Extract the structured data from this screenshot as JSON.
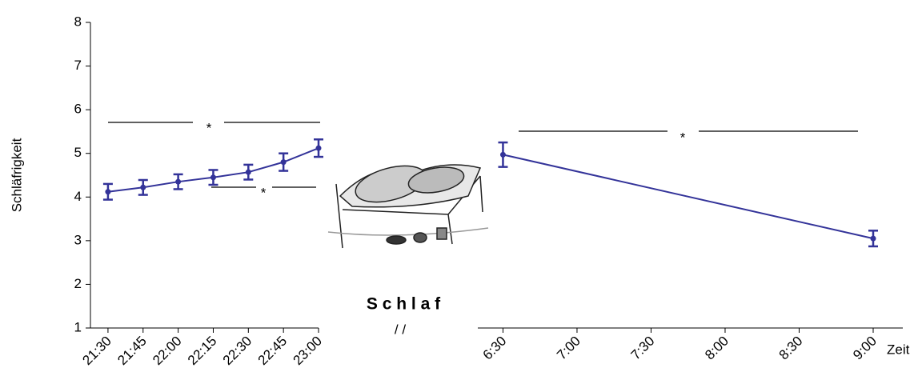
{
  "chart_data": {
    "type": "line",
    "y_label": "Schläfrigkeit",
    "x_label": "Zeit",
    "color": "#333399",
    "ylim": [
      1,
      8
    ],
    "yticks": [
      1,
      2,
      3,
      4,
      5,
      6,
      7,
      8
    ],
    "panels": [
      {
        "xlim": [
          21.375,
          23.0
        ],
        "xticks": [
          {
            "value": 21.5,
            "label": "21:30"
          },
          {
            "value": 21.75,
            "label": "21:45"
          },
          {
            "value": 22.0,
            "label": "22:00"
          },
          {
            "value": 22.25,
            "label": "22:15"
          },
          {
            "value": 22.5,
            "label": "22:30"
          },
          {
            "value": 22.75,
            "label": "22:45"
          },
          {
            "value": 23.0,
            "label": "23:00"
          }
        ],
        "x": [
          21.5,
          21.75,
          22.0,
          22.25,
          22.5,
          22.75,
          23.0
        ],
        "values": [
          4.12,
          4.22,
          4.35,
          4.45,
          4.57,
          4.8,
          5.12
        ],
        "errors": [
          0.18,
          0.17,
          0.17,
          0.17,
          0.17,
          0.2,
          0.2
        ]
      },
      {
        "xlim": [
          6.33,
          9.2
        ],
        "xticks": [
          {
            "value": 6.5,
            "label": "6:30"
          },
          {
            "value": 7.0,
            "label": "7:00"
          },
          {
            "value": 7.5,
            "label": "7:30"
          },
          {
            "value": 8.0,
            "label": "8:00"
          },
          {
            "value": 8.5,
            "label": "8:30"
          },
          {
            "value": 9.0,
            "label": "9:00"
          }
        ],
        "x": [
          6.5,
          9.0
        ],
        "values": [
          4.97,
          3.05
        ],
        "errors": [
          0.28,
          0.18
        ]
      }
    ],
    "annotations": [
      "*",
      "*",
      "*",
      "S c h l a f",
      "/ /"
    ]
  }
}
